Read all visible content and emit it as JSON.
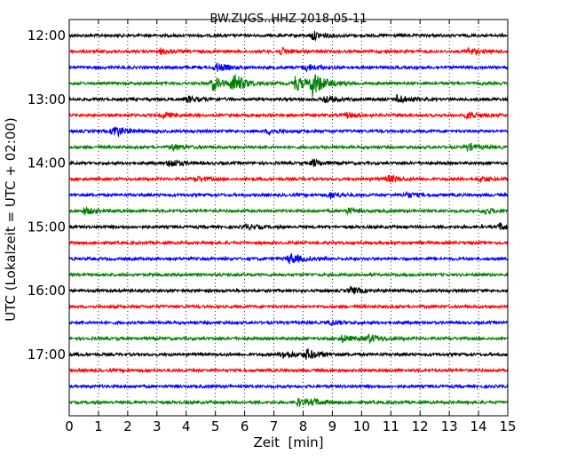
{
  "chart_data": {
    "type": "line",
    "title": "BW.ZUGS..HHZ 2018-05-11",
    "xlabel": "Zeit  [min]",
    "ylabel": "UTC (Lokalzeit = UTC + 02:00)",
    "xlim": [
      0,
      15
    ],
    "x_ticks": [
      "0",
      "1",
      "2",
      "3",
      "4",
      "5",
      "6",
      "7",
      "8",
      "9",
      "10",
      "11",
      "12",
      "13",
      "14",
      "15"
    ],
    "y_ticks": [
      "12:00",
      "13:00",
      "14:00",
      "15:00",
      "16:00",
      "17:00"
    ],
    "grid": "vertical dotted",
    "trace_minutes_per_line": 15,
    "line_colors": [
      "#000000",
      "#ff0000",
      "#0000ff",
      "#008000"
    ],
    "series": [
      {
        "start": "12:00",
        "events": [
          {
            "t": 8.3,
            "a": 5
          }
        ]
      },
      {
        "start": "12:15",
        "events": [
          {
            "t": 3.1,
            "a": 3
          },
          {
            "t": 7.2,
            "a": 4
          },
          {
            "t": 13.6,
            "a": 4
          }
        ]
      },
      {
        "start": "12:30",
        "events": [
          {
            "t": 5.0,
            "a": 5
          },
          {
            "t": 8.1,
            "a": 4
          }
        ]
      },
      {
        "start": "12:45",
        "events": [
          {
            "t": 4.9,
            "a": 8
          },
          {
            "t": 5.6,
            "a": 11
          },
          {
            "t": 7.7,
            "a": 9
          },
          {
            "t": 8.3,
            "a": 14
          }
        ]
      },
      {
        "start": "13:00",
        "events": [
          {
            "t": 4.0,
            "a": 4
          },
          {
            "t": 8.7,
            "a": 5
          },
          {
            "t": 11.2,
            "a": 5
          }
        ]
      },
      {
        "start": "13:15",
        "events": [
          {
            "t": 3.2,
            "a": 3
          },
          {
            "t": 9.5,
            "a": 3
          },
          {
            "t": 13.6,
            "a": 4
          }
        ]
      },
      {
        "start": "13:30",
        "events": [
          {
            "t": 1.5,
            "a": 7
          },
          {
            "t": 6.8,
            "a": 3
          }
        ]
      },
      {
        "start": "13:45",
        "events": [
          {
            "t": 3.5,
            "a": 4
          },
          {
            "t": 13.6,
            "a": 4
          }
        ]
      },
      {
        "start": "14:00",
        "events": [
          {
            "t": 3.4,
            "a": 5
          },
          {
            "t": 8.3,
            "a": 4
          }
        ]
      },
      {
        "start": "14:15",
        "events": [
          {
            "t": 4.3,
            "a": 3
          },
          {
            "t": 10.9,
            "a": 4
          },
          {
            "t": 14.0,
            "a": 3
          }
        ]
      },
      {
        "start": "14:30",
        "events": [
          {
            "t": 8.9,
            "a": 4
          },
          {
            "t": 11.5,
            "a": 3
          }
        ]
      },
      {
        "start": "14:45",
        "events": [
          {
            "t": 0.5,
            "a": 4
          },
          {
            "t": 9.5,
            "a": 3
          },
          {
            "t": 14.2,
            "a": 3
          }
        ]
      },
      {
        "start": "15:00",
        "events": [
          {
            "t": 6.0,
            "a": 3
          },
          {
            "t": 14.7,
            "a": 4
          }
        ]
      },
      {
        "start": "15:15",
        "events": []
      },
      {
        "start": "15:30",
        "events": [
          {
            "t": 7.5,
            "a": 7
          }
        ]
      },
      {
        "start": "15:45",
        "events": []
      },
      {
        "start": "16:00",
        "events": [
          {
            "t": 9.6,
            "a": 4
          }
        ]
      },
      {
        "start": "16:15",
        "events": []
      },
      {
        "start": "16:30",
        "events": [
          {
            "t": 8.9,
            "a": 3
          }
        ]
      },
      {
        "start": "16:45",
        "events": [
          {
            "t": 9.3,
            "a": 4
          },
          {
            "t": 10.2,
            "a": 5
          }
        ]
      },
      {
        "start": "17:00",
        "events": [
          {
            "t": 7.3,
            "a": 5
          },
          {
            "t": 8.1,
            "a": 6
          }
        ]
      },
      {
        "start": "17:15",
        "events": []
      },
      {
        "start": "17:30",
        "events": []
      },
      {
        "start": "17:45",
        "events": [
          {
            "t": 7.8,
            "a": 4
          },
          {
            "t": 8.3,
            "a": 3
          }
        ]
      }
    ]
  }
}
